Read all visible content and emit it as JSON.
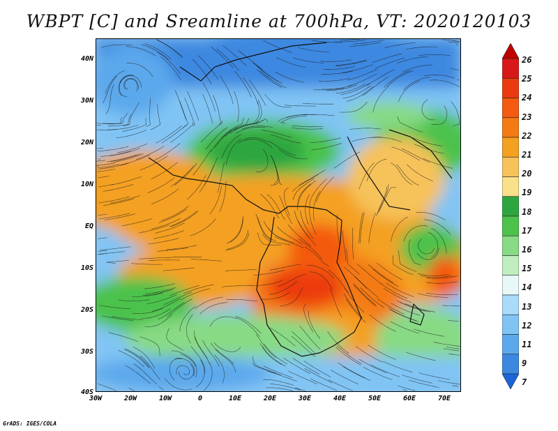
{
  "title": "WBPT [C] and Sreamline at 700hPa, VT: 2020120103",
  "credit": "GrADS: IGES/COLA",
  "map": {
    "lat_labels": [
      "40N",
      "30N",
      "20N",
      "10N",
      "EQ",
      "10S",
      "20S",
      "30S",
      "40S"
    ],
    "lon_labels": [
      "30W",
      "20W",
      "10W",
      "0",
      "10E",
      "20E",
      "30E",
      "40E",
      "50E",
      "60E",
      "70E"
    ],
    "lat_range": [
      -40,
      45
    ],
    "lon_range": [
      -30,
      75
    ]
  },
  "colorbar": {
    "labels": [
      "26",
      "25",
      "24",
      "23",
      "22",
      "21",
      "20",
      "19",
      "18",
      "17",
      "16",
      "15",
      "14",
      "13",
      "12",
      "11",
      "9",
      "7"
    ],
    "colors": [
      "#c00000",
      "#d81818",
      "#ec3a10",
      "#f45a10",
      "#f47a14",
      "#f4a020",
      "#f6c25a",
      "#fae08a",
      "#2ea640",
      "#4cc24c",
      "#88da84",
      "#c0eec0",
      "#e8f8f8",
      "#aadcfa",
      "#80c4f4",
      "#5ca8ec",
      "#3c88e0",
      "#1c64d8"
    ]
  }
}
